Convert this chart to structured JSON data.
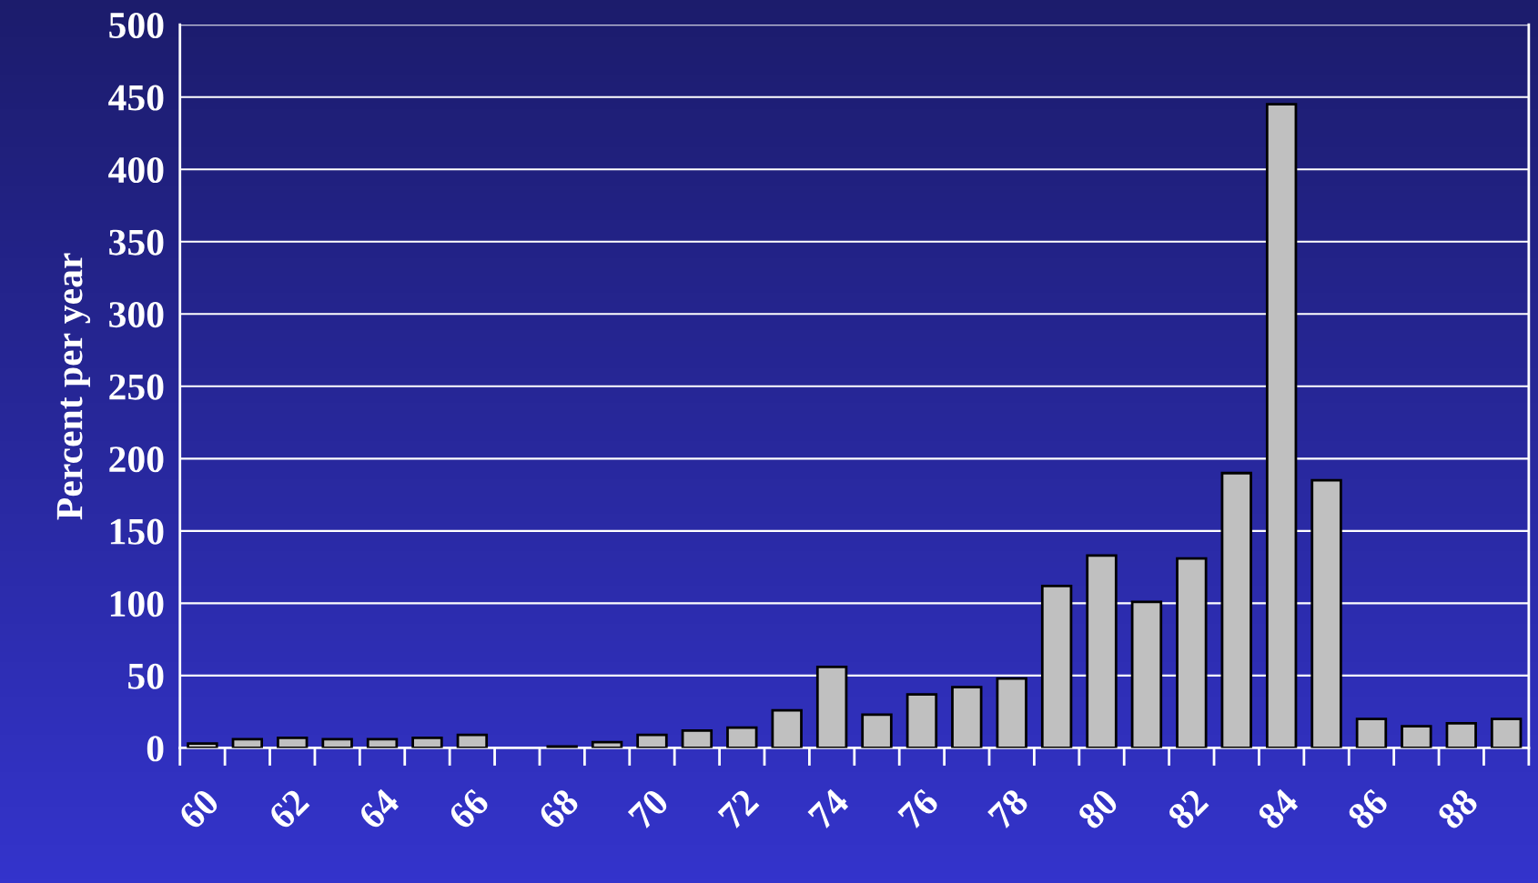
{
  "chart_data": {
    "type": "bar",
    "ylabel": "Percent per year",
    "categories": [
      "60",
      null,
      "62",
      null,
      "64",
      null,
      "66",
      null,
      "68",
      null,
      "70",
      null,
      "72",
      null,
      "74",
      null,
      "76",
      null,
      "78",
      null,
      "80",
      null,
      "82",
      null,
      "84",
      null,
      "86",
      null,
      "88",
      null
    ],
    "values": [
      3,
      6,
      7,
      6,
      6,
      7,
      9,
      null,
      1,
      4,
      9,
      12,
      14,
      26,
      56,
      23,
      37,
      42,
      48,
      112,
      133,
      101,
      131,
      190,
      445,
      185,
      20,
      15,
      17,
      20
    ],
    "color": "#c0c0c0",
    "ylim": [
      0,
      500
    ],
    "yticks": [
      0,
      50,
      100,
      150,
      200,
      250,
      300,
      350,
      400,
      450,
      500
    ],
    "grid": "y"
  }
}
